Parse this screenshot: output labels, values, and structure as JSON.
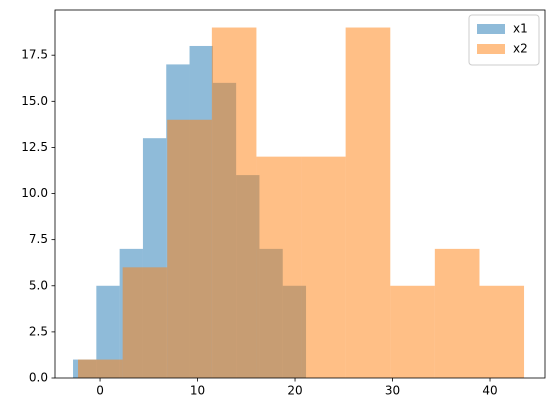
{
  "chart_data": {
    "type": "histogram",
    "series": [
      {
        "name": "x1",
        "color": "#1f77b4",
        "bins": [
          -2.77,
          -0.38,
          2.01,
          4.4,
          6.79,
          9.18,
          11.57,
          13.96,
          16.35,
          18.74,
          21.13
        ],
        "values": [
          1,
          5,
          7,
          13,
          17,
          18,
          16,
          11,
          7,
          5
        ]
      },
      {
        "name": "x2",
        "color": "#ff7f0e",
        "bins": [
          -2.26,
          2.32,
          6.89,
          11.47,
          16.04,
          20.62,
          25.19,
          29.77,
          34.34,
          38.92,
          43.49
        ],
        "values": [
          1,
          6,
          14,
          19,
          12,
          12,
          19,
          5,
          7,
          5
        ]
      }
    ],
    "opacity": 0.5,
    "xlim": [
      -4.62,
      45.64
    ],
    "ylim": [
      0,
      19.95
    ],
    "xticks": [
      0,
      10,
      20,
      30,
      40
    ],
    "yticks": [
      {
        "value": 0,
        "label": "0.0"
      },
      {
        "value": 2.5,
        "label": "2.5"
      },
      {
        "value": 5,
        "label": "5.0"
      },
      {
        "value": 7.5,
        "label": "7.5"
      },
      {
        "value": 10,
        "label": "10.0"
      },
      {
        "value": 12.5,
        "label": "12.5"
      },
      {
        "value": 15,
        "label": "15.0"
      },
      {
        "value": 17.5,
        "label": "17.5"
      }
    ],
    "legend": "upper right"
  }
}
